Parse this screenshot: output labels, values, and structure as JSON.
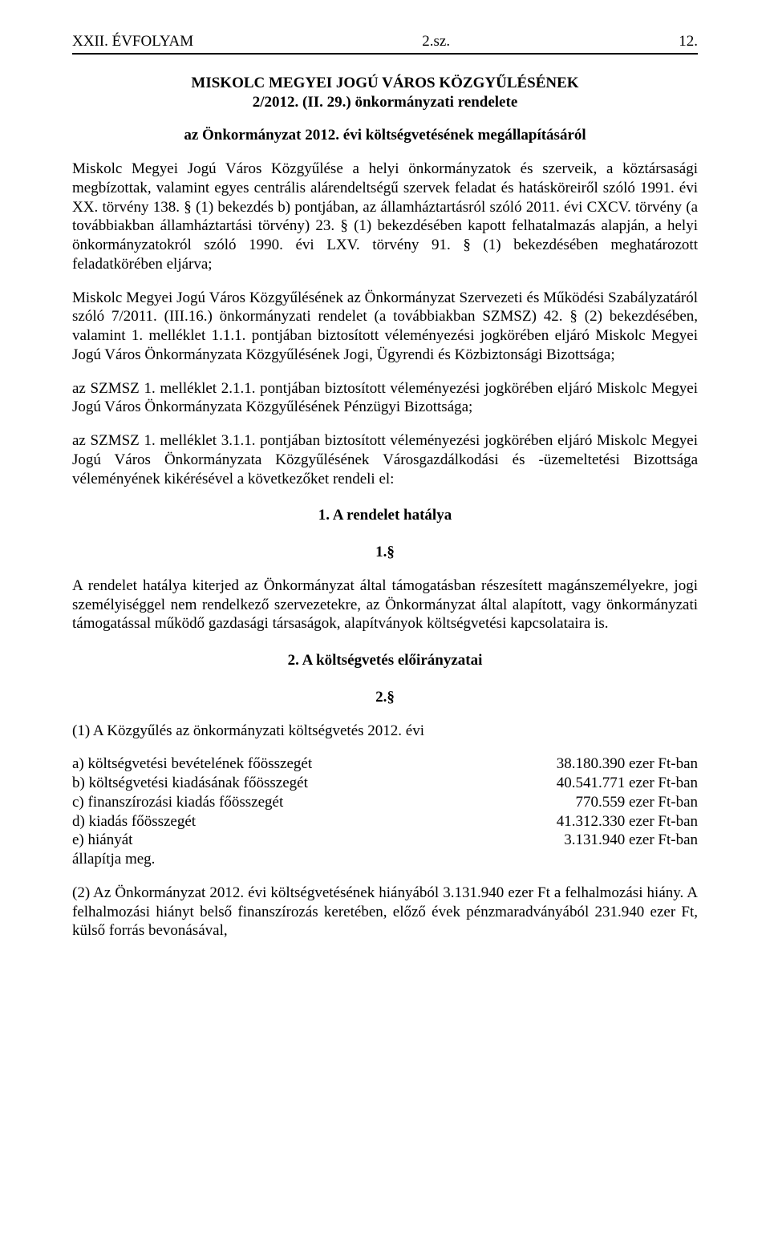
{
  "header": {
    "left": "XXII. ÉVFOLYAM",
    "mid": "2.sz.",
    "right": "12."
  },
  "title": {
    "line1": "MISKOLC MEGYEI JOGÚ VÁROS KÖZGYŰLÉSÉNEK",
    "line2": "2/2012. (II. 29.) önkormányzati rendelete"
  },
  "subtitle": "az Önkormányzat 2012. évi költségvetésének megállapításáról",
  "preamble": "Miskolc Megyei Jogú Város Közgyűlése a helyi önkormányzatok és szerveik, a köztársasági megbízottak, valamint egyes centrális alárendeltségű szervek feladat és hatásköreiről szóló 1991. évi XX. törvény 138. § (1) bekezdés b) pontjában, az államháztartásról szóló 2011. évi CXCV. törvény (a továbbiakban államháztartási törvény) 23. § (1) bekezdésében kapott felhatalmazás alapján, a helyi önkormányzatokról szóló 1990. évi LXV. törvény 91. § (1) bekezdésében meghatározott feladatkörében eljárva;",
  "preamble2": "Miskolc Megyei Jogú Város Közgyűlésének az Önkormányzat Szervezeti és Működési Szabályzatáról szóló 7/2011. (III.16.) önkormányzati rendelet (a továbbiakban SZMSZ) 42. § (2) bekezdésében, valamint 1. melléklet 1.1.1. pontjában biztosított véleményezési jogkörében eljáró Miskolc Megyei Jogú Város Önkormányzata Közgyűlésének Jogi, Ügyrendi és Közbiztonsági Bizottsága;",
  "preamble3": "az SZMSZ 1. melléklet 2.1.1. pontjában biztosított véleményezési jogkörében eljáró Miskolc Megyei Jogú Város Önkormányzata Közgyűlésének Pénzügyi Bizottsága;",
  "preamble4": "az SZMSZ 1. melléklet 3.1.1. pontjában biztosított véleményezési jogkörében eljáró Miskolc Megyei Jogú Város Önkormányzata Közgyűlésének Városgazdálkodási és -üzemeltetési Bizottsága véleményének kikérésével a következőket rendeli el:",
  "section1": {
    "heading": "1. A rendelet hatálya",
    "para_num": "1.§",
    "text": "A rendelet hatálya kiterjed az Önkormányzat által támogatásban részesített magánszemélyekre, jogi személyiséggel nem rendelkező szervezetekre, az Önkormányzat által alapított, vagy önkormányzati támogatással működő gazdasági társaságok, alapítványok költségvetési kapcsolataira is."
  },
  "section2": {
    "heading": "2. A költségvetés előirányzatai",
    "para_num": "2.§",
    "lead": "(1)   A Közgyűlés az önkormányzati költségvetés 2012. évi",
    "rows": [
      {
        "label": "a) költségvetési bevételének főösszegét",
        "value": "38.180.390 ezer Ft-ban"
      },
      {
        "label": "b) költségvetési kiadásának főösszegét",
        "value": "40.541.771 ezer Ft-ban"
      },
      {
        "label": "c) finanszírozási kiadás főösszegét",
        "value": "770.559 ezer Ft-ban"
      },
      {
        "label": "d) kiadás főösszegét",
        "value": "41.312.330 ezer Ft-ban"
      },
      {
        "label": "e) hiányát",
        "value": "3.131.940 ezer Ft-ban"
      }
    ],
    "tail": "állapítja meg.",
    "para2": "(2)  Az Önkormányzat 2012. évi költségvetésének hiányából 3.131.940 ezer Ft a felhalmozási hiány. A felhalmozási hiányt belső finanszírozás keretében, előző évek pénzmaradványából 231.940 ezer Ft, külső forrás bevonásával,"
  }
}
